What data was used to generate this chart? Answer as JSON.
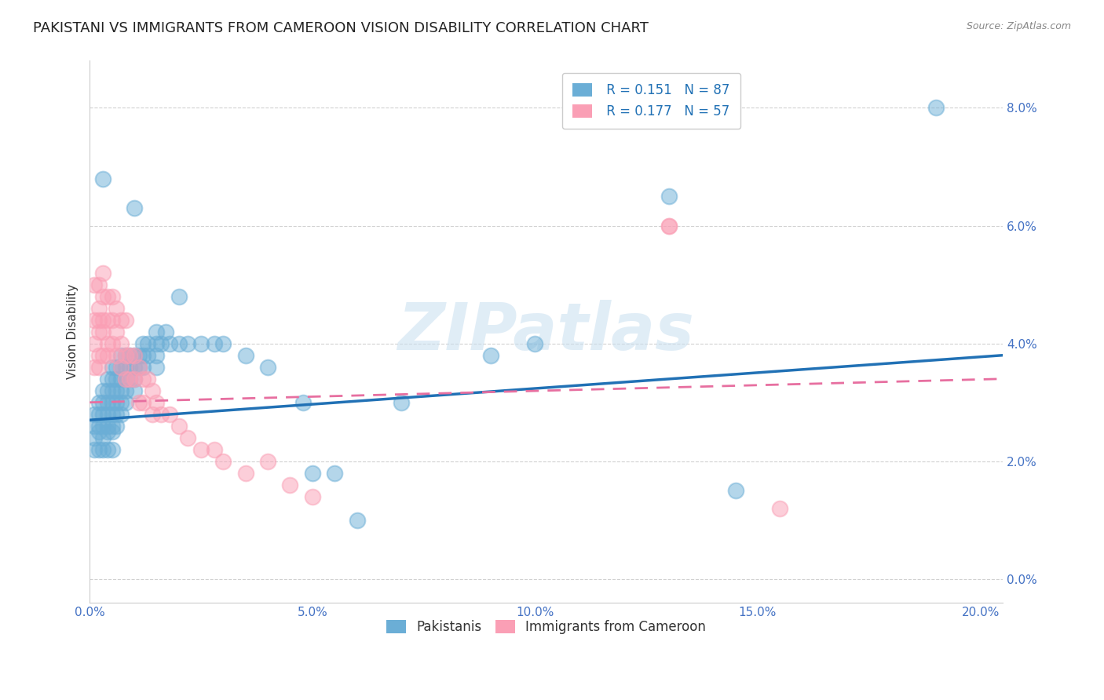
{
  "title": "PAKISTANI VS IMMIGRANTS FROM CAMEROON VISION DISABILITY CORRELATION CHART",
  "source": "Source: ZipAtlas.com",
  "xlabel_ticks": [
    "0.0%",
    "5.0%",
    "10.0%",
    "15.0%",
    "20.0%"
  ],
  "ylabel_ticks": [
    "0.0%",
    "2.0%",
    "4.0%",
    "6.0%",
    "8.0%"
  ],
  "xlim": [
    0.0,
    0.205
  ],
  "ylim": [
    -0.004,
    0.088
  ],
  "watermark": "ZIPatlas",
  "legend_pakistanis_label": "Pakistanis",
  "legend_cameroon_label": "Immigrants from Cameroon",
  "legend_r1": "R = 0.151",
  "legend_n1": "N = 87",
  "legend_r2": "R = 0.177",
  "legend_n2": "N = 57",
  "pakistani_color": "#6baed6",
  "cameroon_color": "#fa9fb5",
  "pakistani_line_color": "#2171b5",
  "cameroon_line_color": "#e76fa0",
  "pakistani_scatter": [
    [
      0.001,
      0.028
    ],
    [
      0.001,
      0.026
    ],
    [
      0.001,
      0.024
    ],
    [
      0.001,
      0.022
    ],
    [
      0.002,
      0.03
    ],
    [
      0.002,
      0.028
    ],
    [
      0.002,
      0.026
    ],
    [
      0.002,
      0.025
    ],
    [
      0.002,
      0.022
    ],
    [
      0.003,
      0.032
    ],
    [
      0.003,
      0.03
    ],
    [
      0.003,
      0.028
    ],
    [
      0.003,
      0.026
    ],
    [
      0.003,
      0.024
    ],
    [
      0.003,
      0.022
    ],
    [
      0.004,
      0.034
    ],
    [
      0.004,
      0.032
    ],
    [
      0.004,
      0.03
    ],
    [
      0.004,
      0.028
    ],
    [
      0.004,
      0.026
    ],
    [
      0.004,
      0.025
    ],
    [
      0.004,
      0.022
    ],
    [
      0.005,
      0.036
    ],
    [
      0.005,
      0.034
    ],
    [
      0.005,
      0.032
    ],
    [
      0.005,
      0.03
    ],
    [
      0.005,
      0.028
    ],
    [
      0.005,
      0.026
    ],
    [
      0.005,
      0.025
    ],
    [
      0.005,
      0.022
    ],
    [
      0.006,
      0.036
    ],
    [
      0.006,
      0.034
    ],
    [
      0.006,
      0.032
    ],
    [
      0.006,
      0.03
    ],
    [
      0.006,
      0.028
    ],
    [
      0.006,
      0.026
    ],
    [
      0.007,
      0.038
    ],
    [
      0.007,
      0.036
    ],
    [
      0.007,
      0.034
    ],
    [
      0.007,
      0.032
    ],
    [
      0.007,
      0.03
    ],
    [
      0.007,
      0.028
    ],
    [
      0.008,
      0.038
    ],
    [
      0.008,
      0.036
    ],
    [
      0.008,
      0.034
    ],
    [
      0.008,
      0.032
    ],
    [
      0.008,
      0.03
    ],
    [
      0.009,
      0.038
    ],
    [
      0.009,
      0.036
    ],
    [
      0.009,
      0.034
    ],
    [
      0.01,
      0.038
    ],
    [
      0.01,
      0.036
    ],
    [
      0.01,
      0.034
    ],
    [
      0.01,
      0.032
    ],
    [
      0.011,
      0.038
    ],
    [
      0.011,
      0.036
    ],
    [
      0.012,
      0.04
    ],
    [
      0.012,
      0.038
    ],
    [
      0.012,
      0.036
    ],
    [
      0.013,
      0.04
    ],
    [
      0.013,
      0.038
    ],
    [
      0.015,
      0.042
    ],
    [
      0.015,
      0.04
    ],
    [
      0.015,
      0.038
    ],
    [
      0.015,
      0.036
    ],
    [
      0.016,
      0.04
    ],
    [
      0.017,
      0.042
    ],
    [
      0.018,
      0.04
    ],
    [
      0.02,
      0.04
    ],
    [
      0.022,
      0.04
    ],
    [
      0.025,
      0.04
    ],
    [
      0.028,
      0.04
    ],
    [
      0.03,
      0.04
    ],
    [
      0.035,
      0.038
    ],
    [
      0.04,
      0.036
    ],
    [
      0.048,
      0.03
    ],
    [
      0.05,
      0.018
    ],
    [
      0.055,
      0.018
    ],
    [
      0.06,
      0.01
    ],
    [
      0.003,
      0.068
    ],
    [
      0.01,
      0.063
    ],
    [
      0.02,
      0.048
    ],
    [
      0.07,
      0.03
    ],
    [
      0.09,
      0.038
    ],
    [
      0.1,
      0.04
    ],
    [
      0.13,
      0.065
    ],
    [
      0.19,
      0.08
    ],
    [
      0.145,
      0.015
    ]
  ],
  "cameroon_scatter": [
    [
      0.001,
      0.05
    ],
    [
      0.001,
      0.044
    ],
    [
      0.001,
      0.04
    ],
    [
      0.001,
      0.036
    ],
    [
      0.002,
      0.05
    ],
    [
      0.002,
      0.046
    ],
    [
      0.002,
      0.044
    ],
    [
      0.002,
      0.042
    ],
    [
      0.002,
      0.038
    ],
    [
      0.002,
      0.036
    ],
    [
      0.003,
      0.052
    ],
    [
      0.003,
      0.048
    ],
    [
      0.003,
      0.044
    ],
    [
      0.003,
      0.042
    ],
    [
      0.003,
      0.038
    ],
    [
      0.004,
      0.048
    ],
    [
      0.004,
      0.044
    ],
    [
      0.004,
      0.04
    ],
    [
      0.004,
      0.038
    ],
    [
      0.005,
      0.048
    ],
    [
      0.005,
      0.044
    ],
    [
      0.005,
      0.04
    ],
    [
      0.006,
      0.046
    ],
    [
      0.006,
      0.042
    ],
    [
      0.006,
      0.038
    ],
    [
      0.007,
      0.044
    ],
    [
      0.007,
      0.04
    ],
    [
      0.007,
      0.036
    ],
    [
      0.008,
      0.044
    ],
    [
      0.008,
      0.038
    ],
    [
      0.008,
      0.034
    ],
    [
      0.009,
      0.038
    ],
    [
      0.009,
      0.034
    ],
    [
      0.01,
      0.038
    ],
    [
      0.01,
      0.034
    ],
    [
      0.011,
      0.036
    ],
    [
      0.011,
      0.03
    ],
    [
      0.012,
      0.034
    ],
    [
      0.012,
      0.03
    ],
    [
      0.013,
      0.034
    ],
    [
      0.014,
      0.032
    ],
    [
      0.014,
      0.028
    ],
    [
      0.015,
      0.03
    ],
    [
      0.016,
      0.028
    ],
    [
      0.018,
      0.028
    ],
    [
      0.02,
      0.026
    ],
    [
      0.022,
      0.024
    ],
    [
      0.025,
      0.022
    ],
    [
      0.028,
      0.022
    ],
    [
      0.03,
      0.02
    ],
    [
      0.035,
      0.018
    ],
    [
      0.04,
      0.02
    ],
    [
      0.045,
      0.016
    ],
    [
      0.05,
      0.014
    ],
    [
      0.13,
      0.06
    ],
    [
      0.155,
      0.012
    ],
    [
      0.13,
      0.06
    ]
  ],
  "pakistani_trend_x": [
    0.0,
    0.205
  ],
  "pakistani_trend_y": [
    0.027,
    0.038
  ],
  "cameroon_trend_x": [
    0.0,
    0.205
  ],
  "cameroon_trend_y": [
    0.03,
    0.034
  ],
  "background_color": "#ffffff",
  "grid_color": "#cccccc",
  "title_fontsize": 13,
  "axis_label_fontsize": 11,
  "tick_fontsize": 11,
  "ylabel": "Vision Disability"
}
